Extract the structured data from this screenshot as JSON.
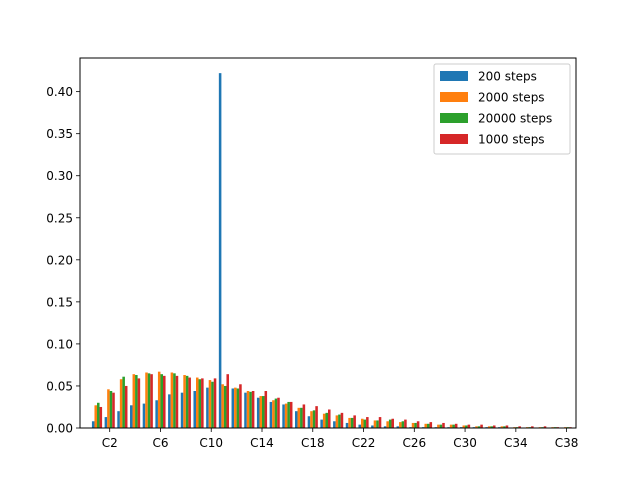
{
  "chart_data": {
    "type": "bar",
    "title": "",
    "xlabel": "",
    "ylabel": "",
    "ylim": [
      0,
      0.44
    ],
    "grid": false,
    "legend_position": "top-right",
    "categories": [
      "C1",
      "C2",
      "C3",
      "C4",
      "C5",
      "C6",
      "C7",
      "C8",
      "C9",
      "C10",
      "C11",
      "C12",
      "C13",
      "C14",
      "C15",
      "C16",
      "C17",
      "C18",
      "C19",
      "C20",
      "C21",
      "C22",
      "C23",
      "C24",
      "C25",
      "C26",
      "C27",
      "C28",
      "C29",
      "C30",
      "C31",
      "C32",
      "C33",
      "C34",
      "C35",
      "C36",
      "C37",
      "C38"
    ],
    "x_tick_labels": [
      "C2",
      "C6",
      "C10",
      "C14",
      "C18",
      "C22",
      "C26",
      "C30",
      "C34",
      "C38"
    ],
    "y_ticks": [
      0.0,
      0.05,
      0.1,
      0.15,
      0.2,
      0.25,
      0.3,
      0.35,
      0.4
    ],
    "y_tick_labels": [
      "0.00",
      "0.05",
      "0.10",
      "0.15",
      "0.20",
      "0.25",
      "0.30",
      "0.35",
      "0.40"
    ],
    "series": [
      {
        "name": "200 steps",
        "color": "#1f77b4",
        "values": [
          0.008,
          0.013,
          0.02,
          0.027,
          0.029,
          0.033,
          0.04,
          0.042,
          0.044,
          0.048,
          0.422,
          0.047,
          0.042,
          0.036,
          0.031,
          0.028,
          0.02,
          0.014,
          0.01,
          0.008,
          0.006,
          0.004,
          0.003,
          0.002,
          0.002,
          0.001,
          0.001,
          0.001,
          0.001,
          0.001,
          0.001,
          0.001,
          0.001,
          0.0,
          0.0,
          0.0,
          0.0,
          0.0
        ]
      },
      {
        "name": "2000 steps",
        "color": "#ff7f0e",
        "values": [
          0.027,
          0.046,
          0.058,
          0.064,
          0.066,
          0.067,
          0.066,
          0.063,
          0.06,
          0.057,
          0.052,
          0.048,
          0.044,
          0.038,
          0.033,
          0.029,
          0.024,
          0.02,
          0.017,
          0.015,
          0.012,
          0.011,
          0.009,
          0.008,
          0.007,
          0.006,
          0.005,
          0.004,
          0.004,
          0.003,
          0.002,
          0.002,
          0.002,
          0.001,
          0.001,
          0.001,
          0.001,
          0.001
        ]
      },
      {
        "name": "20000 steps",
        "color": "#2ca02c",
        "values": [
          0.03,
          0.044,
          0.061,
          0.063,
          0.065,
          0.064,
          0.065,
          0.062,
          0.058,
          0.055,
          0.05,
          0.047,
          0.043,
          0.038,
          0.035,
          0.031,
          0.024,
          0.021,
          0.018,
          0.016,
          0.012,
          0.01,
          0.009,
          0.01,
          0.008,
          0.006,
          0.005,
          0.004,
          0.004,
          0.003,
          0.002,
          0.002,
          0.002,
          0.001,
          0.001,
          0.001,
          0.001,
          0.001
        ]
      },
      {
        "name": "1000 steps",
        "color": "#d62728",
        "values": [
          0.025,
          0.042,
          0.05,
          0.059,
          0.064,
          0.062,
          0.062,
          0.06,
          0.059,
          0.059,
          0.064,
          0.052,
          0.044,
          0.044,
          0.036,
          0.031,
          0.028,
          0.026,
          0.022,
          0.018,
          0.015,
          0.013,
          0.013,
          0.011,
          0.01,
          0.008,
          0.007,
          0.006,
          0.005,
          0.004,
          0.004,
          0.003,
          0.003,
          0.002,
          0.002,
          0.002,
          0.001,
          0.001
        ]
      }
    ]
  }
}
